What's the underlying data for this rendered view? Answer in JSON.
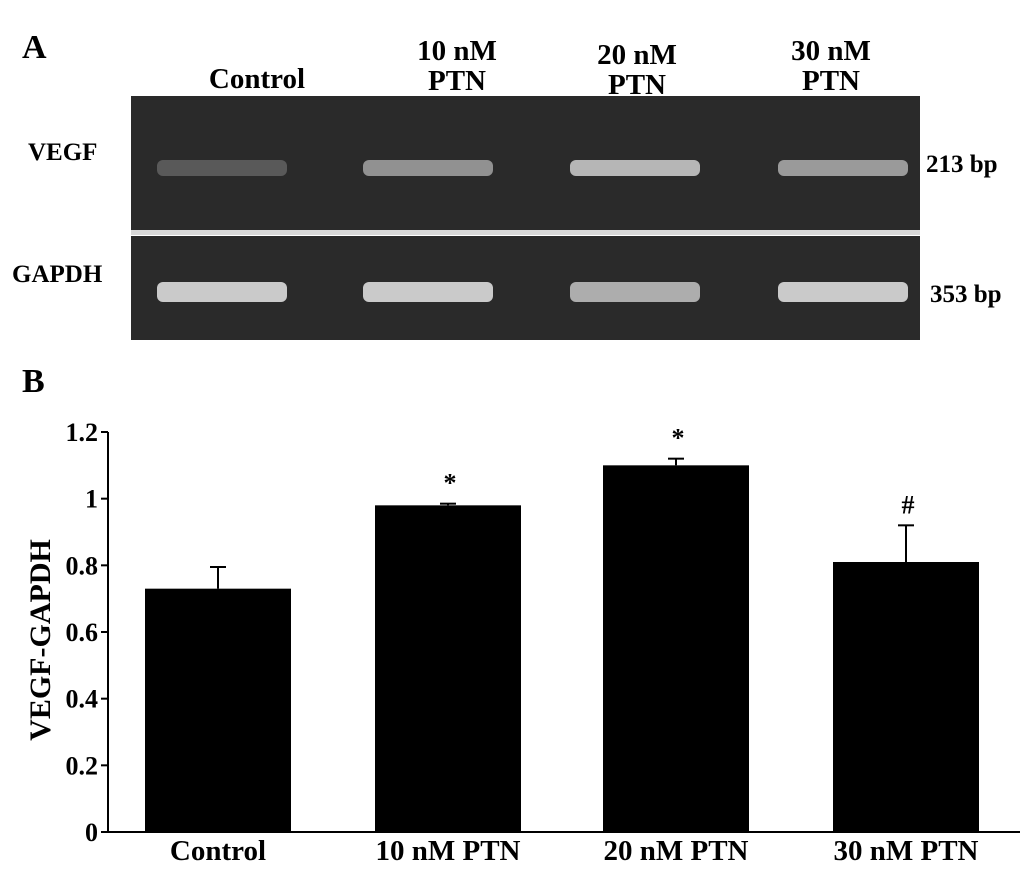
{
  "panel_a": {
    "label": "A",
    "lanes": [
      {
        "line1": "Control",
        "line2": ""
      },
      {
        "line1": "10 nM",
        "line2": "PTN"
      },
      {
        "line1": "20 nM",
        "line2": "PTN"
      },
      {
        "line1": "30 nM",
        "line2": "PTN"
      }
    ],
    "gels": [
      {
        "name": "VEGF",
        "size": "213 bp",
        "band_intensity": [
          0.25,
          0.55,
          0.75,
          0.6
        ]
      },
      {
        "name": "GAPDH",
        "size": "353 bp",
        "band_intensity": [
          0.85,
          0.85,
          0.7,
          0.85
        ]
      }
    ],
    "colors": {
      "gel": "#2a2a2a",
      "band": "#e6e6e6"
    }
  },
  "panel_b": {
    "label": "B"
  },
  "chart_data": {
    "type": "bar",
    "categories": [
      "Control",
      "10 nM PTN",
      "20 nM PTN",
      "30 nM PTN"
    ],
    "values": [
      0.73,
      0.98,
      1.1,
      0.81
    ],
    "error": [
      0.065,
      0.005,
      0.02,
      0.11
    ],
    "markers": [
      "",
      "*",
      "*",
      "#"
    ],
    "title": "",
    "xlabel": "",
    "ylabel": "VEGF-GAPDH",
    "ylim": [
      0,
      1.2
    ],
    "yticks": [
      {
        "value": 0,
        "label": "0"
      },
      {
        "value": 0.2,
        "label": "0.2"
      },
      {
        "value": 0.4,
        "label": "0.4"
      },
      {
        "value": 0.6,
        "label": "0.6"
      },
      {
        "value": 0.8,
        "label": "0.8"
      },
      {
        "value": 1.0,
        "label": "1"
      },
      {
        "value": 1.2,
        "label": "1.2"
      }
    ],
    "bar_color": "#000000",
    "grid": false,
    "legend": "none"
  }
}
